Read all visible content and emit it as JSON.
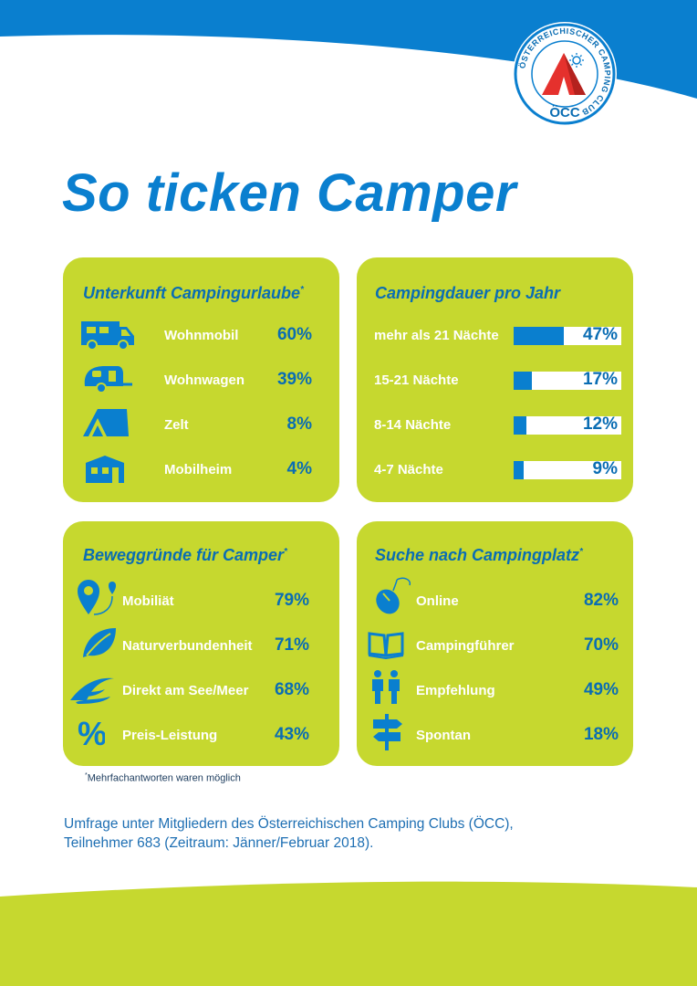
{
  "title": "So ticken Camper",
  "logo": {
    "ring_text": "ÖSTERREICHISCHER CAMPING CLUB",
    "abbrev": "ÖCC"
  },
  "colors": {
    "blue": "#0a7fcf",
    "green": "#c6d82f",
    "text_blue": "#0a6db3"
  },
  "panels": {
    "unterkunft": {
      "title": "Unterkunft Campingurlaube",
      "asterisk": "*",
      "items": [
        {
          "icon": "motorhome-icon",
          "label": "Wohnmobil",
          "value": "60%"
        },
        {
          "icon": "caravan-icon",
          "label": "Wohnwagen",
          "value": "39%"
        },
        {
          "icon": "tent-icon",
          "label": "Zelt",
          "value": "8%"
        },
        {
          "icon": "mobile-home-icon",
          "label": "Mobilheim",
          "value": "4%"
        }
      ]
    },
    "dauer": {
      "title": "Campingdauer pro Jahr",
      "items": [
        {
          "label": "mehr als 21 Nächte",
          "value": "47%",
          "fraction": 0.47
        },
        {
          "label": "15-21 Nächte",
          "value": "17%",
          "fraction": 0.17
        },
        {
          "label": "8-14 Nächte",
          "value": "12%",
          "fraction": 0.12
        },
        {
          "label": "4-7 Nächte",
          "value": "9%",
          "fraction": 0.09
        }
      ]
    },
    "beweggruende": {
      "title": "Beweggründe für Camper",
      "asterisk": "*",
      "items": [
        {
          "icon": "location-pin-icon",
          "label": "Mobiliät",
          "value": "79%"
        },
        {
          "icon": "leaf-icon",
          "label": "Naturverbundenheit",
          "value": "71%"
        },
        {
          "icon": "waves-icon",
          "label": "Direkt am See/Meer",
          "value": "68%"
        },
        {
          "icon": "percent-icon",
          "label": "Preis-Leistung",
          "value": "43%"
        }
      ]
    },
    "suche": {
      "title": "Suche nach Campingplatz",
      "asterisk": "*",
      "items": [
        {
          "icon": "mouse-icon",
          "label": "Online",
          "value": "82%"
        },
        {
          "icon": "book-icon",
          "label": "Campingführer",
          "value": "70%"
        },
        {
          "icon": "people-icon",
          "label": "Empfehlung",
          "value": "49%"
        },
        {
          "icon": "signpost-icon",
          "label": "Spontan",
          "value": "18%"
        }
      ]
    }
  },
  "note": {
    "asterisk": "*",
    "text": "Mehrfachantworten waren möglich"
  },
  "footer": {
    "line1": "Umfrage unter Mitgliedern des Österreichischen Camping Clubs (ÖCC),",
    "line2": "Teilnehmer 683 (Zeitraum: Jänner/Februar 2018)."
  }
}
